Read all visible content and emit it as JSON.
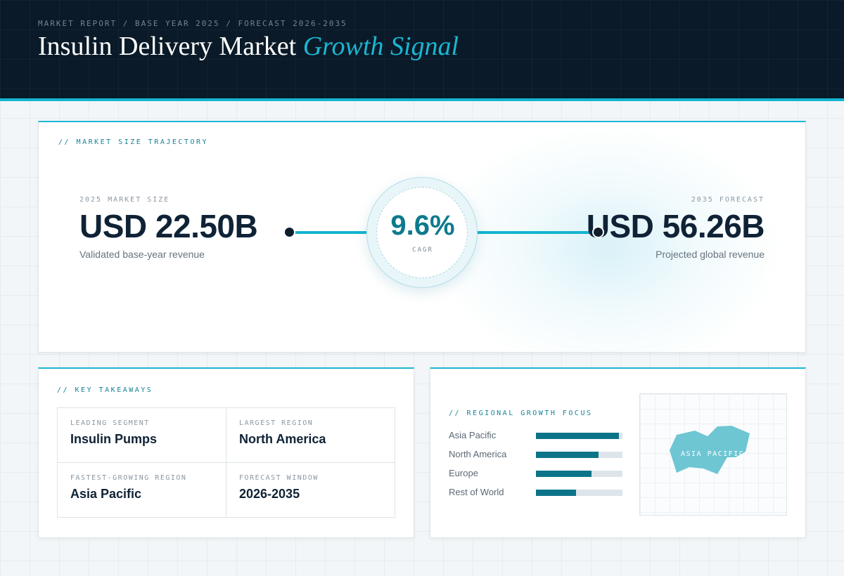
{
  "header": {
    "breadcrumb": "MARKET REPORT / BASE YEAR 2025 / FORECAST 2026-2035",
    "title_main": "Insulin Delivery Market",
    "title_accent": "Growth Signal"
  },
  "trajectory": {
    "label": "// MARKET SIZE TRAJECTORY",
    "base": {
      "label": "2025 MARKET SIZE",
      "value": "USD 22.50B",
      "sub": "Validated base-year revenue"
    },
    "cagr": {
      "value": "9.6%",
      "label": "CAGR"
    },
    "forecast": {
      "label": "2035 FORECAST",
      "value": "USD 56.26B",
      "sub": "Projected global revenue"
    }
  },
  "takeaways": {
    "label": "// KEY TAKEAWAYS",
    "items": [
      {
        "label": "LEADING SEGMENT",
        "value": "Insulin Pumps"
      },
      {
        "label": "LARGEST REGION",
        "value": "North America"
      },
      {
        "label": "FASTEST-GROWING REGION",
        "value": "Asia Pacific"
      },
      {
        "label": "FORECAST WINDOW",
        "value": "2026-2035"
      }
    ]
  },
  "regional": {
    "label": "// REGIONAL GROWTH FOCUS",
    "regions": [
      {
        "name": "Asia Pacific",
        "level": 0.96
      },
      {
        "name": "North America",
        "level": 0.72
      },
      {
        "name": "Europe",
        "level": 0.64
      },
      {
        "name": "Rest of World",
        "level": 0.46
      }
    ],
    "map_label": "ASIA PACIFIC",
    "colors": {
      "bar": "#0c7488",
      "map_shape": "#6ec6d3"
    }
  },
  "colors": {
    "accent": "#13b4cf",
    "header_bg": "#0a1a28",
    "text_dark": "#0f2236"
  }
}
